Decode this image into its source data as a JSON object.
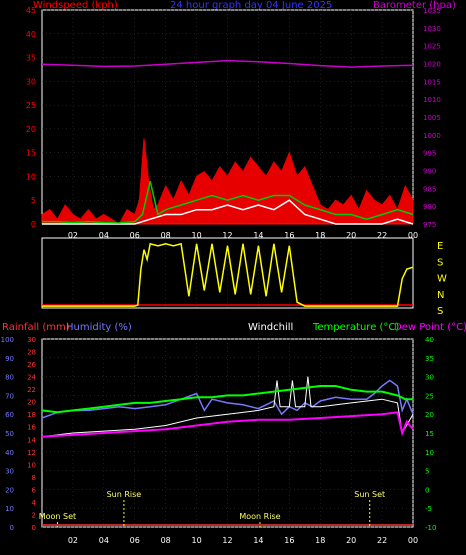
{
  "colors": {
    "background": "#000000",
    "plot_border": "#ffffff",
    "grid": "#3a3a3a",
    "windspeed": "#ff0000",
    "windspeed_avg": "#00cc00",
    "windspeed_low": "#ffffff",
    "barometer": "#cc00cc",
    "title": "#3333ff",
    "wind_dir": "#ffff00",
    "wind_dir_red": "#ff0000",
    "rainfall": "#ff3333",
    "humidity": "#7777ff",
    "windchill": "#ffffff",
    "temperature": "#00ff00",
    "dew_point": "#ff00ff",
    "sun_label": "#ffff66",
    "moon_label": "#ffff66",
    "marker": "#ffff00"
  },
  "chart_data": [
    {
      "type": "line",
      "title": "24 hour graph day  04 June 2025",
      "y_left_label": "Windspeed (kph)",
      "y_right_label": "Barometer (hpa)",
      "y_left_range": [
        0,
        45
      ],
      "y_left_ticks": [
        "0",
        "5",
        "10",
        "15",
        "20",
        "25",
        "30",
        "35",
        "40",
        "45"
      ],
      "y_right_range": [
        975,
        1035
      ],
      "y_right_ticks": [
        "975",
        "980",
        "985",
        "990",
        "995",
        "1000",
        "1005",
        "1010",
        "1015",
        "1020",
        "1025",
        "1030",
        "1035"
      ],
      "x_ticks": [
        "02",
        "04",
        "06",
        "08",
        "10",
        "12",
        "14",
        "16",
        "18",
        "20",
        "22",
        "00"
      ],
      "series": [
        {
          "key": "barometer",
          "x": [
            0,
            2,
            4,
            6,
            8,
            10,
            12,
            14,
            16,
            18,
            20,
            22,
            24
          ],
          "values": [
            1019.8,
            1019.5,
            1019.2,
            1019.3,
            1019.8,
            1020.3,
            1020.8,
            1020.5,
            1020.0,
            1019.4,
            1019.0,
            1019.3,
            1019.5
          ]
        },
        {
          "key": "windspeed_gust",
          "x": [
            0,
            0.5,
            1,
            1.5,
            2,
            2.5,
            3,
            3.5,
            4,
            4.5,
            5,
            5.5,
            6,
            6.3,
            6.6,
            6.9,
            7.2,
            7.5,
            8,
            8.5,
            9,
            9.5,
            10,
            10.5,
            11,
            11.5,
            12,
            12.5,
            13,
            13.5,
            14,
            14.5,
            15,
            15.5,
            16,
            16.5,
            17,
            17.5,
            18,
            18.5,
            19,
            19.5,
            20,
            20.5,
            21,
            21.5,
            22,
            22.5,
            23,
            23.5,
            24
          ],
          "values": [
            2,
            3,
            1,
            4,
            2,
            1,
            3,
            1,
            2,
            1,
            0,
            3,
            2,
            5,
            18,
            9,
            3,
            4,
            8,
            5,
            9,
            6,
            10,
            11,
            9,
            12,
            10,
            13,
            11,
            14,
            12,
            10,
            13,
            11,
            15,
            10,
            12,
            8,
            4,
            3,
            5,
            4,
            6,
            3,
            7,
            5,
            4,
            6,
            3,
            8,
            5
          ]
        },
        {
          "key": "windspeed_avg",
          "x": [
            0,
            1,
            2,
            3,
            4,
            5,
            6,
            6.5,
            7,
            7.5,
            8,
            9,
            10,
            11,
            12,
            13,
            14,
            15,
            16,
            17,
            18,
            19,
            20,
            21,
            22,
            23,
            24
          ],
          "values": [
            0.5,
            0.5,
            0.3,
            0.5,
            0.3,
            0.2,
            0.5,
            2,
            9,
            2,
            3,
            4,
            5,
            6,
            5,
            6,
            5,
            6,
            6,
            4,
            3,
            2,
            2,
            1,
            2,
            3,
            2
          ]
        },
        {
          "key": "windspeed_low",
          "x": [
            0,
            1,
            2,
            3,
            4,
            5,
            6,
            7,
            8,
            9,
            10,
            11,
            12,
            13,
            14,
            15,
            16,
            17,
            18,
            19,
            20,
            21,
            22,
            23,
            24
          ],
          "values": [
            0,
            0,
            0,
            0,
            0,
            0,
            0,
            1,
            2,
            2,
            3,
            3,
            4,
            3,
            4,
            3,
            5,
            2,
            1,
            0,
            0,
            0,
            0,
            1,
            0
          ]
        }
      ]
    },
    {
      "type": "line",
      "y_labels": [
        "E",
        "S",
        "W",
        "N",
        "S"
      ],
      "x_ticks": [],
      "series": [
        {
          "key": "wind_direction_deg",
          "x": [
            0,
            1,
            2,
            3,
            4,
            5,
            6,
            6.2,
            6.4,
            6.6,
            6.8,
            7,
            7.5,
            8,
            8.5,
            9,
            9.5,
            10,
            10.5,
            11,
            11.5,
            12,
            12.5,
            13,
            13.5,
            14,
            14.5,
            15,
            15.5,
            16,
            16.5,
            17,
            17.5,
            18,
            19,
            20,
            21,
            22,
            23,
            23.3,
            23.6,
            24
          ],
          "values": [
            10,
            10,
            10,
            10,
            10,
            10,
            10,
            15,
            200,
            300,
            250,
            330,
            320,
            330,
            320,
            330,
            60,
            330,
            90,
            330,
            80,
            320,
            70,
            330,
            70,
            320,
            60,
            330,
            80,
            320,
            30,
            10,
            10,
            10,
            10,
            10,
            10,
            10,
            10,
            150,
            200,
            210
          ]
        }
      ]
    },
    {
      "type": "line",
      "y_rainfall_label": "Rainfall (mm)",
      "y_humidity_label": "Humidity (%)",
      "windchill_label": "Windchill",
      "temperature_label": "Temperature (°C)",
      "dew_point_label": "Dew Point (°C)",
      "y_humidity_range": [
        0,
        100
      ],
      "y_humidity_ticks": [
        "0",
        "10",
        "20",
        "30",
        "40",
        "50",
        "60",
        "70",
        "80",
        "90",
        "100"
      ],
      "y_rain_range": [
        0,
        30
      ],
      "y_rain_ticks": [
        "0",
        "2",
        "4",
        "6",
        "8",
        "10",
        "12",
        "14",
        "16",
        "18",
        "20",
        "22",
        "24",
        "26",
        "28",
        "30"
      ],
      "y_temp_range": [
        -10,
        40
      ],
      "y_temp_ticks": [
        "-10",
        "-5",
        "0",
        "5",
        "10",
        "15",
        "20",
        "25",
        "30",
        "35",
        "40"
      ],
      "x_ticks": [
        "02",
        "04",
        "06",
        "08",
        "10",
        "12",
        "14",
        "16",
        "18",
        "20",
        "22",
        "00"
      ],
      "annotations": [
        {
          "text": "Sun Rise",
          "x": 5.3
        },
        {
          "text": "Sun Set",
          "x": 21.2
        },
        {
          "text": "Moon Set",
          "x": 1.0
        },
        {
          "text": "Moon Rise",
          "x": 14.1
        }
      ],
      "marker_labels": [
        "Sun Rise",
        "Sun Set",
        "Moon Set",
        "Moon Rise",
        "Sun Rise",
        "Sun Set",
        "Moon Set"
      ],
      "series": [
        {
          "key": "humidity",
          "x": [
            0,
            1,
            2,
            3,
            4,
            5,
            6,
            7,
            8,
            9,
            10,
            10.5,
            11,
            12,
            13,
            14,
            14.5,
            15,
            15.5,
            16,
            16.5,
            17,
            17.5,
            18,
            19,
            20,
            21,
            21.5,
            22,
            22.5,
            23,
            23.3,
            23.6,
            24
          ],
          "values": [
            58,
            61,
            62,
            62,
            63,
            64,
            63,
            64,
            65,
            68,
            71,
            62,
            68,
            66,
            65,
            63,
            65,
            67,
            60,
            64,
            62,
            66,
            64,
            67,
            69,
            68,
            68,
            71,
            75,
            78,
            75,
            62,
            68,
            60
          ]
        },
        {
          "key": "windchill",
          "x": [
            0,
            2,
            4,
            6,
            8,
            10,
            12,
            14,
            15,
            15.2,
            15.4,
            16,
            16.2,
            16.4,
            17,
            17.2,
            17.4,
            18,
            20,
            22,
            23,
            23.3,
            24
          ],
          "values": [
            14,
            15,
            15.5,
            16,
            17,
            19,
            20,
            21,
            22,
            29,
            22,
            22,
            29,
            22,
            22,
            30,
            22,
            22,
            23,
            24,
            23,
            15,
            20
          ]
        },
        {
          "key": "temperature",
          "x": [
            0,
            1,
            2,
            3,
            4,
            5,
            6,
            7,
            8,
            9,
            10,
            11,
            12,
            13,
            14,
            15,
            16,
            17,
            18,
            19,
            20,
            21,
            22,
            23,
            23.5,
            24
          ],
          "values": [
            21,
            20.5,
            21,
            21.5,
            22,
            22.5,
            23,
            23,
            23.5,
            24,
            24.5,
            24.5,
            25,
            25,
            25.5,
            26,
            26.5,
            27,
            27.5,
            27.5,
            26.5,
            26,
            26,
            25,
            24,
            24
          ]
        },
        {
          "key": "dew_point",
          "x": [
            0,
            2,
            4,
            6,
            8,
            10,
            12,
            14,
            16,
            18,
            20,
            22,
            23,
            23.3,
            23.6,
            24
          ],
          "values": [
            14,
            14.5,
            15,
            15.5,
            16,
            17,
            18,
            18.5,
            18.5,
            19,
            19.5,
            20,
            20.5,
            15,
            18,
            16
          ]
        }
      ]
    }
  ]
}
